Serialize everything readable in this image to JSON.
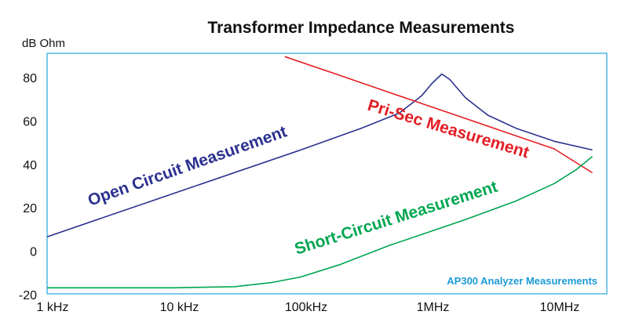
{
  "chart_data": {
    "type": "line",
    "title": "Transformer Impedance Measurements",
    "ylabel": "dB Ohm",
    "xlabel": "",
    "x_scale": "log",
    "xlim": [
      1000,
      20000000
    ],
    "ylim": [
      -20,
      90
    ],
    "x_ticks": [
      {
        "value": 1000,
        "label": "1 kHz"
      },
      {
        "value": 10000,
        "label": "10 kHz"
      },
      {
        "value": 100000,
        "label": "100kHz"
      },
      {
        "value": 1000000,
        "label": "1MHz"
      },
      {
        "value": 10000000,
        "label": "10MHz"
      }
    ],
    "y_ticks": [
      {
        "value": -20,
        "label": "-20"
      },
      {
        "value": 0,
        "label": "0"
      },
      {
        "value": 20,
        "label": "20"
      },
      {
        "value": 40,
        "label": "40"
      },
      {
        "value": 60,
        "label": "60"
      },
      {
        "value": 80,
        "label": "80"
      }
    ],
    "grid": false,
    "annotation": "AP300 Analyzer Measurements",
    "series": [
      {
        "name": "Open Circuit Measurement",
        "color": "#2b3190",
        "x": [
          1000,
          10000,
          100000,
          300000,
          600000,
          900000,
          1100000,
          1300000,
          1500000,
          2000000,
          3000000,
          5000000,
          10000000,
          20000000
        ],
        "y": [
          7,
          27,
          47,
          57,
          64,
          72,
          78,
          82,
          79.5,
          71,
          63,
          57,
          51,
          47
        ]
      },
      {
        "name": "Pri-Sec Measurement",
        "color": "#e31e24",
        "x": [
          75000,
          200000,
          500000,
          1000000,
          2000000,
          5000000,
          10000000,
          20000000
        ],
        "y": [
          90,
          81.5,
          73.5,
          67.5,
          61.5,
          53.5,
          47.5,
          36.5
        ]
      },
      {
        "name": "Short-Circuit Measurement",
        "color": "#00a651",
        "x": [
          1000,
          10000,
          30000,
          60000,
          100000,
          200000,
          500000,
          1000000,
          2000000,
          5000000,
          10000000,
          15000000,
          20000000
        ],
        "y": [
          -16.5,
          -16.5,
          -16,
          -14,
          -11.5,
          -6,
          3,
          9,
          15,
          23.5,
          31.5,
          38,
          44
        ]
      }
    ]
  }
}
